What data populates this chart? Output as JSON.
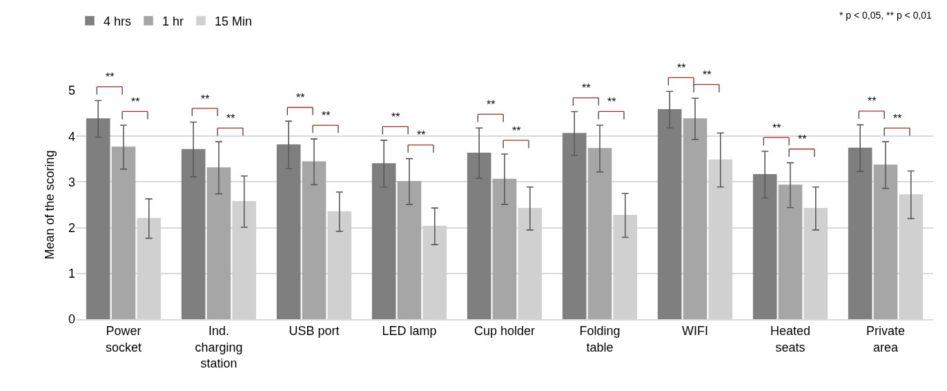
{
  "chart_data": {
    "type": "bar",
    "categories": [
      "Power socket",
      "Ind. charging station",
      "USB port",
      "LED lamp",
      "Cup holder",
      "Folding table",
      "WIFI",
      "Heated seats",
      "Private area"
    ],
    "series": [
      {
        "name": "4 hrs",
        "color": "#7f7f7f",
        "values": [
          4.38,
          3.71,
          3.81,
          3.4,
          3.63,
          4.06,
          4.58,
          3.16,
          3.74
        ],
        "errors": [
          0.4,
          0.6,
          0.52,
          0.51,
          0.55,
          0.48,
          0.4,
          0.51,
          0.51
        ]
      },
      {
        "name": "1 hr",
        "color": "#a6a6a6",
        "values": [
          3.76,
          3.31,
          3.44,
          3.01,
          3.06,
          3.73,
          4.38,
          2.93,
          3.37
        ],
        "errors": [
          0.48,
          0.57,
          0.5,
          0.5,
          0.55,
          0.51,
          0.45,
          0.49,
          0.51
        ]
      },
      {
        "name": "15 Min",
        "color": "#d0d0d0",
        "values": [
          2.2,
          2.57,
          2.35,
          2.03,
          2.42,
          2.27,
          3.48,
          2.42,
          2.72
        ],
        "errors": [
          0.43,
          0.56,
          0.43,
          0.4,
          0.47,
          0.48,
          0.59,
          0.47,
          0.52
        ]
      }
    ],
    "ylabel": "Mean of the scoring",
    "ylim": [
      0,
      5
    ],
    "yticks": [
      0,
      1,
      2,
      3,
      4,
      5
    ],
    "grid": "y",
    "legend": "top left",
    "annotations": [
      "**",
      "**",
      "**",
      "**",
      "**",
      "**",
      "**",
      "**",
      "**",
      "**",
      "**",
      "**",
      "**",
      "**",
      "**",
      "**",
      "**",
      "**",
      "* p < 0,05, ** p < 0,01"
    ]
  }
}
